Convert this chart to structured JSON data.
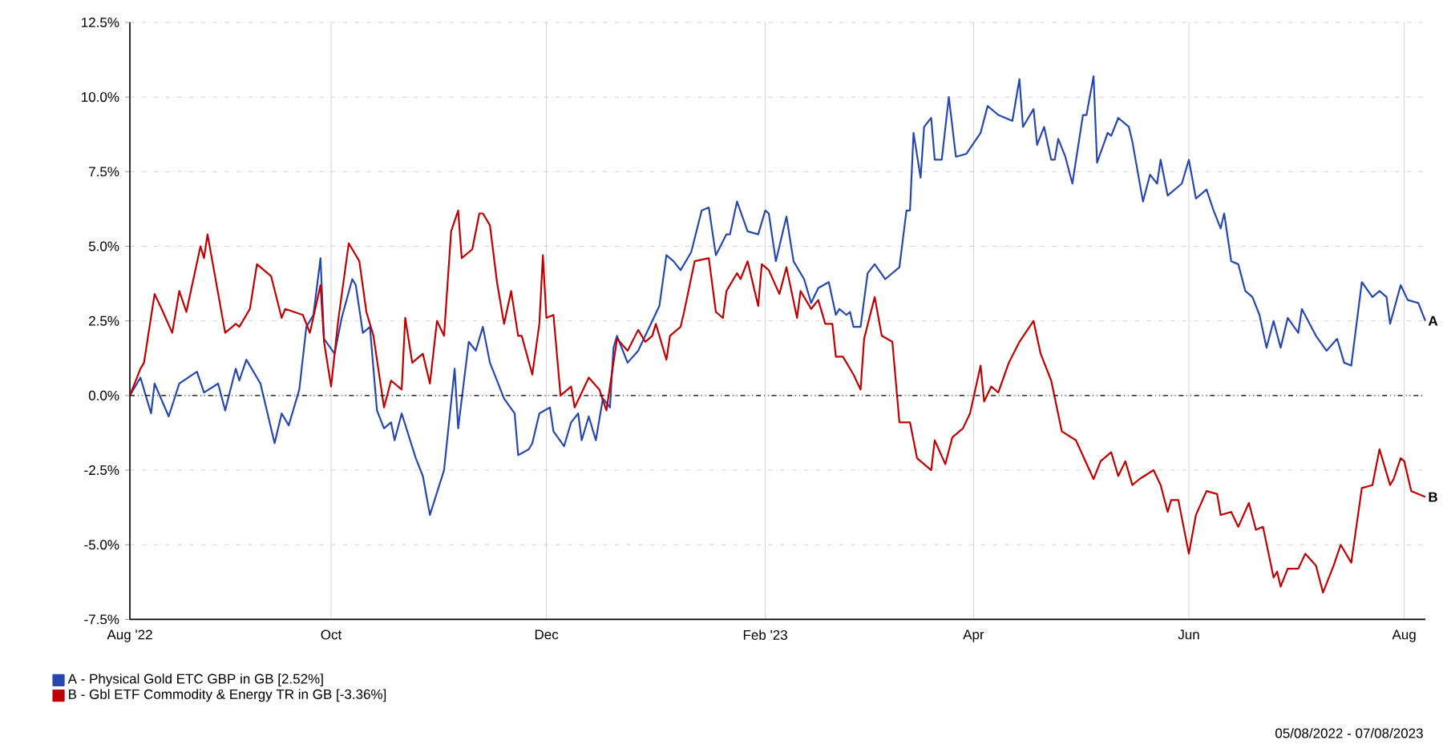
{
  "chart_data": {
    "type": "line",
    "xlim": [
      "2022-08-05",
      "2023-08-07"
    ],
    "xticks": [
      {
        "value": "2022-08-05",
        "label": "Aug '22"
      },
      {
        "value": "2022-10-01",
        "label": "Oct"
      },
      {
        "value": "2022-12-01",
        "label": "Dec"
      },
      {
        "value": "2023-02-01",
        "label": "Feb '23"
      },
      {
        "value": "2023-04-01",
        "label": "Apr"
      },
      {
        "value": "2023-06-01",
        "label": "Jun"
      },
      {
        "value": "2023-08-01",
        "label": "Aug"
      }
    ],
    "ylim": [
      -7.5,
      12.5
    ],
    "yticks": [
      {
        "value": -7.5,
        "label": "-7.5%"
      },
      {
        "value": -5,
        "label": "-5.0%"
      },
      {
        "value": -2.5,
        "label": "-2.5%"
      },
      {
        "value": 0,
        "label": "0.0%"
      },
      {
        "value": 2.5,
        "label": "2.5%"
      },
      {
        "value": 5,
        "label": "5.0%"
      },
      {
        "value": 7.5,
        "label": "7.5%"
      },
      {
        "value": 10,
        "label": "10.0%"
      },
      {
        "value": 12.5,
        "label": "12.5%"
      }
    ],
    "grid": true,
    "legend": "bottom left",
    "marker": "none",
    "line_style": "solid",
    "ref_lines": [
      {
        "axis": "y",
        "value": 0,
        "color": "#000000",
        "line_style": "dotted"
      }
    ],
    "annotations": [
      {
        "text": "A",
        "x": "2023-08-07",
        "y": 2.5
      },
      {
        "text": "B",
        "x": "2023-08-07",
        "y": -3.4
      },
      "05/08/2022 - 07/08/2023"
    ],
    "series": [
      {
        "name": "A - Physical Gold ETC GBP in GB [2.52%]",
        "color": "#2747b0",
        "x": [
          "2022-08-05",
          "2022-08-08",
          "2022-08-11",
          "2022-08-12",
          "2022-08-16",
          "2022-08-19",
          "2022-08-24",
          "2022-08-26",
          "2022-08-30",
          "2022-09-01",
          "2022-09-04",
          "2022-09-05",
          "2022-09-07",
          "2022-09-11",
          "2022-09-15",
          "2022-09-17",
          "2022-09-19",
          "2022-09-22",
          "2022-09-24",
          "2022-09-26",
          "2022-09-28",
          "2022-09-29",
          "2022-10-02",
          "2022-10-04",
          "2022-10-07",
          "2022-10-08",
          "2022-10-10",
          "2022-10-12",
          "2022-10-14",
          "2022-10-16",
          "2022-10-18",
          "2022-10-19",
          "2022-10-21",
          "2022-10-25",
          "2022-10-27",
          "2022-10-29",
          "2022-11-02",
          "2022-11-05",
          "2022-11-06",
          "2022-11-09",
          "2022-11-11",
          "2022-11-13",
          "2022-11-15",
          "2022-11-19",
          "2022-11-22",
          "2022-11-23",
          "2022-11-26",
          "2022-11-27",
          "2022-11-29",
          "2022-12-02",
          "2022-12-03",
          "2022-12-06",
          "2022-12-08",
          "2022-12-10",
          "2022-12-11",
          "2022-12-13",
          "2022-12-15",
          "2022-12-17",
          "2022-12-19",
          "2022-12-20",
          "2022-12-21",
          "2022-12-24",
          "2022-12-27",
          "2022-12-29",
          "2023-01-02",
          "2023-01-04",
          "2023-01-06",
          "2023-01-08",
          "2023-01-11",
          "2023-01-14",
          "2023-01-16",
          "2023-01-18",
          "2023-01-21",
          "2023-01-22",
          "2023-01-24",
          "2023-01-27",
          "2023-01-30",
          "2023-02-01",
          "2023-02-02",
          "2023-02-04",
          "2023-02-07",
          "2023-02-09",
          "2023-02-12",
          "2023-02-14",
          "2023-02-16",
          "2023-02-19",
          "2023-02-21",
          "2023-02-22",
          "2023-02-24",
          "2023-02-25",
          "2023-02-26",
          "2023-02-28",
          "2023-03-02",
          "2023-03-04",
          "2023-03-07",
          "2023-03-09",
          "2023-03-11",
          "2023-03-13",
          "2023-03-14",
          "2023-03-15",
          "2023-03-17",
          "2023-03-18",
          "2023-03-20",
          "2023-03-21",
          "2023-03-23",
          "2023-03-25",
          "2023-03-27",
          "2023-03-30",
          "2023-04-03",
          "2023-04-05",
          "2023-04-08",
          "2023-04-12",
          "2023-04-14",
          "2023-04-15",
          "2023-04-18",
          "2023-04-19",
          "2023-04-21",
          "2023-04-23",
          "2023-04-24",
          "2023-04-25",
          "2023-04-27",
          "2023-04-29",
          "2023-05-02",
          "2023-05-03",
          "2023-05-05",
          "2023-05-06",
          "2023-05-09",
          "2023-05-10",
          "2023-05-12",
          "2023-05-15",
          "2023-05-16",
          "2023-05-19",
          "2023-05-21",
          "2023-05-23",
          "2023-05-24",
          "2023-05-26",
          "2023-05-30",
          "2023-06-01",
          "2023-06-03",
          "2023-06-06",
          "2023-06-08",
          "2023-06-10",
          "2023-06-11",
          "2023-06-13",
          "2023-06-15",
          "2023-06-17",
          "2023-06-19",
          "2023-06-21",
          "2023-06-23",
          "2023-06-25",
          "2023-06-27",
          "2023-06-29",
          "2023-07-02",
          "2023-07-03",
          "2023-07-07",
          "2023-07-10",
          "2023-07-13",
          "2023-07-15",
          "2023-07-17",
          "2023-07-20",
          "2023-07-23",
          "2023-07-25",
          "2023-07-27",
          "2023-07-28",
          "2023-07-31",
          "2023-08-02",
          "2023-08-05",
          "2023-08-07"
        ],
        "values": [
          0.0,
          0.6,
          -0.6,
          0.4,
          -0.7,
          0.4,
          0.8,
          0.1,
          0.4,
          -0.5,
          0.9,
          0.5,
          1.2,
          0.4,
          -1.6,
          -0.6,
          -1.0,
          0.2,
          2.3,
          2.7,
          4.6,
          1.9,
          1.4,
          2.6,
          3.9,
          3.7,
          2.1,
          2.3,
          -0.5,
          -1.1,
          -0.9,
          -1.5,
          -0.6,
          -2.1,
          -2.7,
          -4.0,
          -2.5,
          0.9,
          -1.1,
          1.8,
          1.5,
          2.3,
          1.1,
          -0.1,
          -0.6,
          -2.0,
          -1.8,
          -1.6,
          -0.6,
          -0.4,
          -1.2,
          -1.7,
          -0.9,
          -0.6,
          -1.5,
          -0.7,
          -1.5,
          -0.1,
          -0.4,
          1.6,
          2.0,
          1.1,
          1.5,
          2.0,
          3.0,
          4.7,
          4.5,
          4.2,
          4.8,
          6.2,
          6.3,
          4.7,
          5.4,
          5.4,
          6.5,
          5.5,
          5.4,
          6.2,
          6.1,
          4.5,
          6.0,
          4.5,
          3.9,
          3.1,
          3.6,
          3.8,
          2.7,
          2.9,
          2.7,
          2.8,
          2.3,
          2.3,
          4.1,
          4.4,
          3.9,
          4.1,
          4.3,
          6.2,
          6.2,
          8.8,
          7.3,
          9.0,
          9.3,
          7.9,
          7.9,
          10.0,
          8.0,
          8.1,
          8.8,
          9.7,
          9.4,
          9.2,
          10.6,
          9.0,
          9.6,
          8.4,
          9.0,
          7.9,
          7.9,
          8.6,
          8.0,
          7.1,
          9.4,
          9.4,
          10.7,
          7.8,
          8.8,
          8.7,
          9.3,
          9.0,
          8.5,
          6.5,
          7.4,
          7.1,
          7.9,
          6.7,
          7.1,
          7.9,
          6.6,
          6.9,
          6.2,
          5.6,
          6.1,
          4.5,
          4.4,
          3.5,
          3.3,
          2.7,
          1.6,
          2.5,
          1.6,
          2.6,
          2.1,
          2.9,
          2.0,
          1.5,
          1.9,
          1.1,
          1.0,
          3.8,
          3.3,
          3.5,
          3.3,
          2.4,
          3.7,
          3.2,
          3.1,
          2.5
        ]
      },
      {
        "name": "B - Gbl ETF Commodity & Energy TR in GB [-3.36%]",
        "color": "#c00000",
        "x": [
          "2022-08-05",
          "2022-08-08",
          "2022-08-09",
          "2022-08-12",
          "2022-08-14",
          "2022-08-17",
          "2022-08-19",
          "2022-08-21",
          "2022-08-25",
          "2022-08-26",
          "2022-08-27",
          "2022-09-01",
          "2022-09-04",
          "2022-09-05",
          "2022-09-08",
          "2022-09-10",
          "2022-09-14",
          "2022-09-17",
          "2022-09-18",
          "2022-09-23",
          "2022-09-25",
          "2022-09-28",
          "2022-09-29",
          "2022-10-01",
          "2022-10-03",
          "2022-10-06",
          "2022-10-09",
          "2022-10-11",
          "2022-10-13",
          "2022-10-16",
          "2022-10-18",
          "2022-10-21",
          "2022-10-22",
          "2022-10-24",
          "2022-10-27",
          "2022-10-29",
          "2022-10-31",
          "2022-11-02",
          "2022-11-04",
          "2022-11-06",
          "2022-11-07",
          "2022-11-10",
          "2022-11-12",
          "2022-11-13",
          "2022-11-15",
          "2022-11-17",
          "2022-11-19",
          "2022-11-21",
          "2022-11-23",
          "2022-11-24",
          "2022-11-27",
          "2022-11-29",
          "2022-11-30",
          "2022-12-01",
          "2022-12-03",
          "2022-12-05",
          "2022-12-08",
          "2022-12-09",
          "2022-12-13",
          "2022-12-16",
          "2022-12-18",
          "2022-12-21",
          "2022-12-24",
          "2022-12-27",
          "2022-12-29",
          "2022-12-31",
          "2023-01-01",
          "2023-01-04",
          "2023-01-05",
          "2023-01-08",
          "2023-01-09",
          "2023-01-12",
          "2023-01-16",
          "2023-01-18",
          "2023-01-20",
          "2023-01-21",
          "2023-01-24",
          "2023-01-25",
          "2023-01-27",
          "2023-01-30",
          "2023-01-31",
          "2023-02-02",
          "2023-02-05",
          "2023-02-07",
          "2023-02-10",
          "2023-02-11",
          "2023-02-14",
          "2023-02-16",
          "2023-02-18",
          "2023-02-20",
          "2023-02-21",
          "2023-02-23",
          "2023-02-26",
          "2023-02-28",
          "2023-03-01",
          "2023-03-04",
          "2023-03-06",
          "2023-03-09",
          "2023-03-11",
          "2023-03-14",
          "2023-03-16",
          "2023-03-20",
          "2023-03-21",
          "2023-03-24",
          "2023-03-26",
          "2023-03-29",
          "2023-03-31",
          "2023-04-03",
          "2023-04-04",
          "2023-04-06",
          "2023-04-08",
          "2023-04-11",
          "2023-04-14",
          "2023-04-18",
          "2023-04-20",
          "2023-04-23",
          "2023-04-26",
          "2023-04-30",
          "2023-05-05",
          "2023-05-07",
          "2023-05-10",
          "2023-05-12",
          "2023-05-14",
          "2023-05-16",
          "2023-05-18",
          "2023-05-22",
          "2023-05-24",
          "2023-05-26",
          "2023-05-27",
          "2023-05-29",
          "2023-06-01",
          "2023-06-03",
          "2023-06-06",
          "2023-06-09",
          "2023-06-10",
          "2023-06-13",
          "2023-06-15",
          "2023-06-18",
          "2023-06-20",
          "2023-06-22",
          "2023-06-25",
          "2023-06-26",
          "2023-06-27",
          "2023-06-29",
          "2023-07-02",
          "2023-07-04",
          "2023-07-07",
          "2023-07-09",
          "2023-07-12",
          "2023-07-14",
          "2023-07-17",
          "2023-07-20",
          "2023-07-23",
          "2023-07-25",
          "2023-07-28",
          "2023-07-29",
          "2023-07-31",
          "2023-08-01",
          "2023-08-03",
          "2023-08-07"
        ],
        "values": [
          0.0,
          0.9,
          1.1,
          3.4,
          2.9,
          2.1,
          3.5,
          2.8,
          5.0,
          4.6,
          5.4,
          2.1,
          2.4,
          2.3,
          2.9,
          4.4,
          4.0,
          2.6,
          2.9,
          2.7,
          2.1,
          3.7,
          1.8,
          0.3,
          2.5,
          5.1,
          4.5,
          2.8,
          2.0,
          -0.4,
          0.5,
          0.2,
          2.6,
          1.1,
          1.4,
          0.4,
          2.5,
          2.0,
          5.5,
          6.2,
          4.6,
          4.9,
          6.1,
          6.1,
          5.7,
          3.8,
          2.4,
          3.5,
          2.0,
          2.0,
          0.7,
          2.4,
          4.7,
          2.6,
          2.7,
          0.0,
          0.3,
          -0.4,
          0.6,
          0.2,
          -0.5,
          1.9,
          1.5,
          2.2,
          1.8,
          2.0,
          2.4,
          1.2,
          2.0,
          2.3,
          2.8,
          4.5,
          4.6,
          2.8,
          2.6,
          3.5,
          4.1,
          3.9,
          4.5,
          3.0,
          4.4,
          4.2,
          3.4,
          4.3,
          2.6,
          3.5,
          2.9,
          3.2,
          2.4,
          2.4,
          1.3,
          1.3,
          0.7,
          0.2,
          1.9,
          3.3,
          2.0,
          1.8,
          -0.9,
          -0.9,
          -2.1,
          -2.5,
          -1.5,
          -2.3,
          -1.4,
          -1.1,
          -0.6,
          1.0,
          -0.2,
          0.3,
          0.1,
          1.1,
          1.8,
          2.5,
          1.4,
          0.5,
          -1.2,
          -1.5,
          -2.8,
          -2.2,
          -1.9,
          -2.7,
          -2.2,
          -3.0,
          -2.8,
          -2.5,
          -3.0,
          -3.9,
          -3.5,
          -3.5,
          -5.3,
          -4.0,
          -3.2,
          -3.3,
          -4.0,
          -3.9,
          -4.4,
          -3.6,
          -4.5,
          -4.4,
          -6.1,
          -5.9,
          -6.4,
          -5.8,
          -5.8,
          -5.3,
          -5.7,
          -6.6,
          -5.7,
          -5.0,
          -5.6,
          -3.1,
          -3.0,
          -1.8,
          -3.0,
          -2.8,
          -2.1,
          -2.2,
          -3.2,
          -3.4
        ]
      }
    ]
  }
}
